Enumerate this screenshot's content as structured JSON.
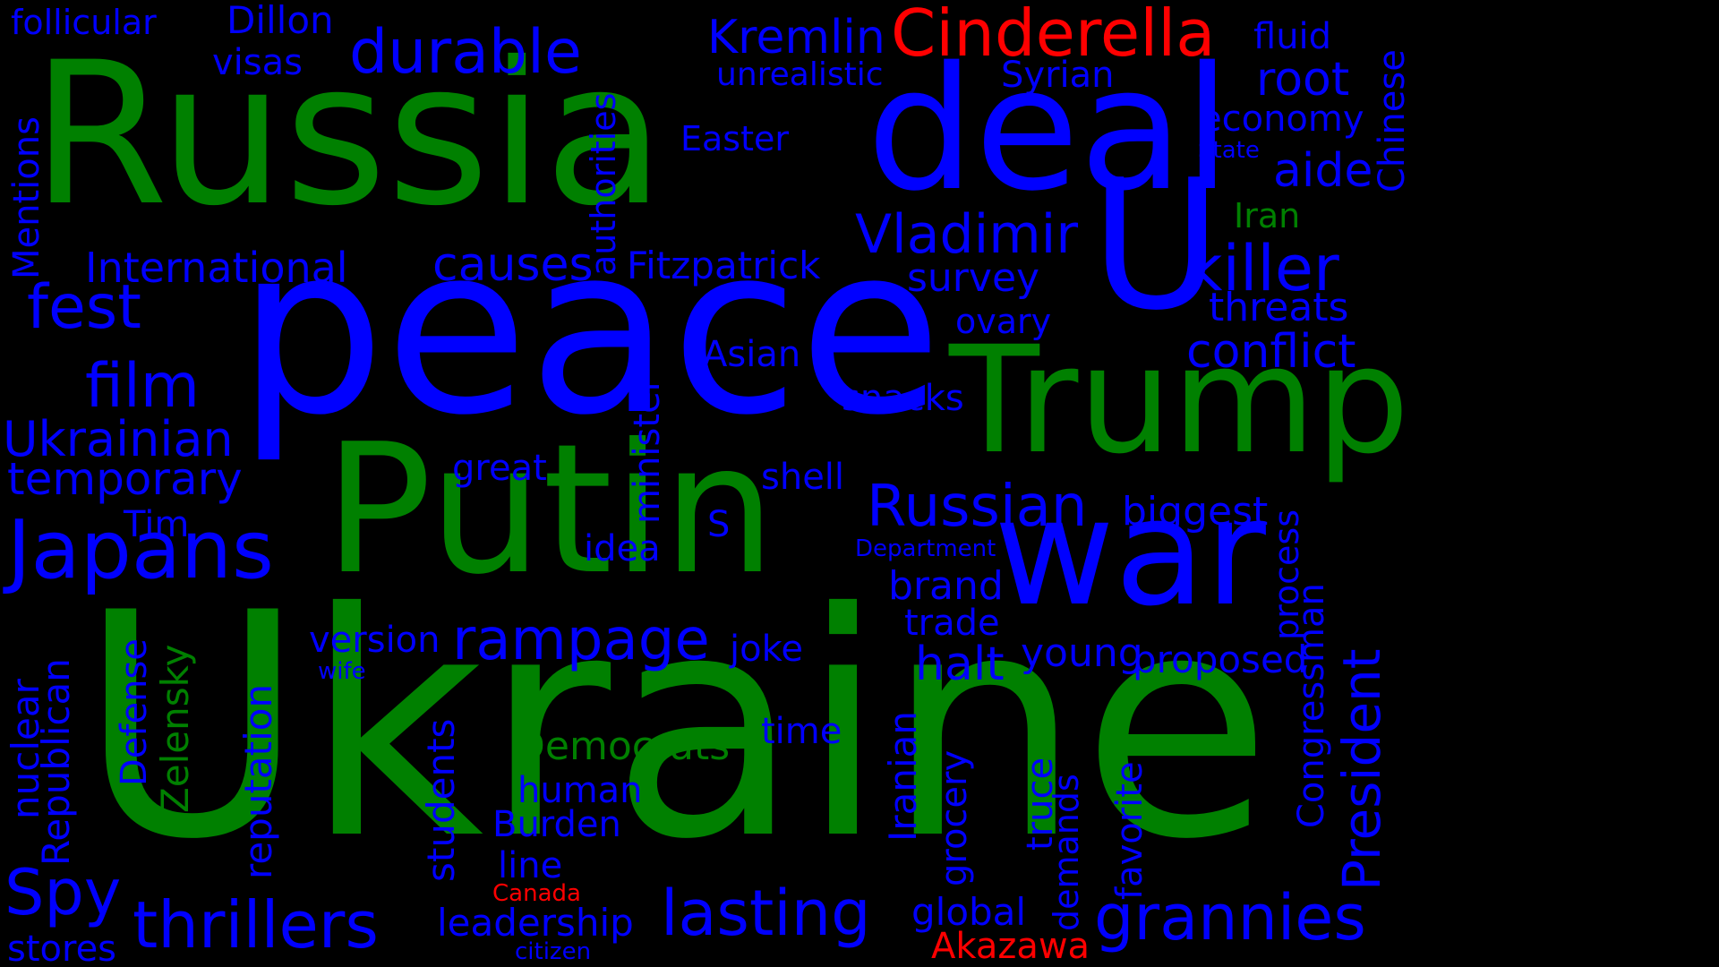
{
  "colors": {
    "background": "#000000",
    "green": "#008000",
    "blue": "#0000ff",
    "red": "#ff0000"
  },
  "words": [
    {
      "text": "Ukraine",
      "color": "green"
    },
    {
      "text": "Russia",
      "color": "green"
    },
    {
      "text": "peace",
      "color": "blue"
    },
    {
      "text": "Putin",
      "color": "green"
    },
    {
      "text": "deal",
      "color": "blue"
    },
    {
      "text": "U",
      "color": "blue"
    },
    {
      "text": "Trump",
      "color": "green"
    },
    {
      "text": "war",
      "color": "blue"
    },
    {
      "text": "Cinderella",
      "color": "red"
    },
    {
      "text": "Japans",
      "color": "blue"
    },
    {
      "text": "durable",
      "color": "blue"
    },
    {
      "text": "killer",
      "color": "blue"
    },
    {
      "text": "Vladimir",
      "color": "blue"
    },
    {
      "text": "Russian",
      "color": "blue"
    },
    {
      "text": "film",
      "color": "blue"
    },
    {
      "text": "fest",
      "color": "blue"
    },
    {
      "text": "rampage",
      "color": "blue"
    },
    {
      "text": "lasting",
      "color": "blue"
    },
    {
      "text": "grannies",
      "color": "blue"
    },
    {
      "text": "thrillers",
      "color": "blue"
    },
    {
      "text": "Spy",
      "color": "blue"
    },
    {
      "text": "President",
      "color": "blue"
    },
    {
      "text": "Kremlin",
      "color": "blue"
    },
    {
      "text": "root",
      "color": "blue"
    },
    {
      "text": "conflict",
      "color": "blue"
    },
    {
      "text": "aide",
      "color": "blue"
    },
    {
      "text": "causes",
      "color": "blue"
    },
    {
      "text": "Ukrainian",
      "color": "blue"
    },
    {
      "text": "temporary",
      "color": "blue"
    },
    {
      "text": "halt",
      "color": "blue"
    },
    {
      "text": "authorities",
      "color": "blue"
    },
    {
      "text": "International",
      "color": "blue"
    },
    {
      "text": "Fitzpatrick",
      "color": "blue"
    },
    {
      "text": "threats",
      "color": "blue"
    },
    {
      "text": "survey",
      "color": "blue"
    },
    {
      "text": "biggest",
      "color": "blue"
    },
    {
      "text": "young",
      "color": "blue"
    },
    {
      "text": "brand",
      "color": "blue"
    },
    {
      "text": "proposed",
      "color": "blue"
    },
    {
      "text": "Democrats",
      "color": "green"
    },
    {
      "text": "Congressman",
      "color": "blue"
    },
    {
      "text": "minister",
      "color": "blue"
    },
    {
      "text": "reputation",
      "color": "blue"
    },
    {
      "text": "Zelensky",
      "color": "green"
    },
    {
      "text": "Republican",
      "color": "blue"
    },
    {
      "text": "Mentions",
      "color": "blue"
    },
    {
      "text": "Chinese",
      "color": "blue"
    },
    {
      "text": "economy",
      "color": "blue"
    },
    {
      "text": "Syrian",
      "color": "blue"
    },
    {
      "text": "fluid",
      "color": "blue"
    },
    {
      "text": "Dillon",
      "color": "blue"
    },
    {
      "text": "follicular",
      "color": "blue"
    },
    {
      "text": "visas",
      "color": "blue"
    },
    {
      "text": "unrealistic",
      "color": "blue"
    },
    {
      "text": "Easter",
      "color": "blue"
    },
    {
      "text": "Iran",
      "color": "green"
    },
    {
      "text": "State",
      "color": "blue"
    },
    {
      "text": "ovary",
      "color": "blue"
    },
    {
      "text": "Asian",
      "color": "blue"
    },
    {
      "text": "snacks",
      "color": "blue"
    },
    {
      "text": "shell",
      "color": "blue"
    },
    {
      "text": "great",
      "color": "blue"
    },
    {
      "text": "idea",
      "color": "blue"
    },
    {
      "text": "S",
      "color": "blue"
    },
    {
      "text": "Department",
      "color": "blue"
    },
    {
      "text": "Tim",
      "color": "blue"
    },
    {
      "text": "version",
      "color": "blue"
    },
    {
      "text": "wife",
      "color": "blue"
    },
    {
      "text": "joke",
      "color": "blue"
    },
    {
      "text": "trade",
      "color": "blue"
    },
    {
      "text": "time",
      "color": "blue"
    },
    {
      "text": "human",
      "color": "blue"
    },
    {
      "text": "Burden",
      "color": "blue"
    },
    {
      "text": "line",
      "color": "blue"
    },
    {
      "text": "Canada",
      "color": "red"
    },
    {
      "text": "leadership",
      "color": "blue"
    },
    {
      "text": "citizen",
      "color": "blue"
    },
    {
      "text": "global",
      "color": "blue"
    },
    {
      "text": "Akazawa",
      "color": "red"
    },
    {
      "text": "stores",
      "color": "blue"
    },
    {
      "text": "nuclear",
      "color": "blue"
    },
    {
      "text": "Defense",
      "color": "blue"
    },
    {
      "text": "students",
      "color": "blue"
    },
    {
      "text": "Iranian",
      "color": "blue"
    },
    {
      "text": "grocery",
      "color": "blue"
    },
    {
      "text": "truce",
      "color": "blue"
    },
    {
      "text": "demands",
      "color": "blue"
    },
    {
      "text": "favorite",
      "color": "blue"
    },
    {
      "text": "process",
      "color": "blue"
    }
  ]
}
